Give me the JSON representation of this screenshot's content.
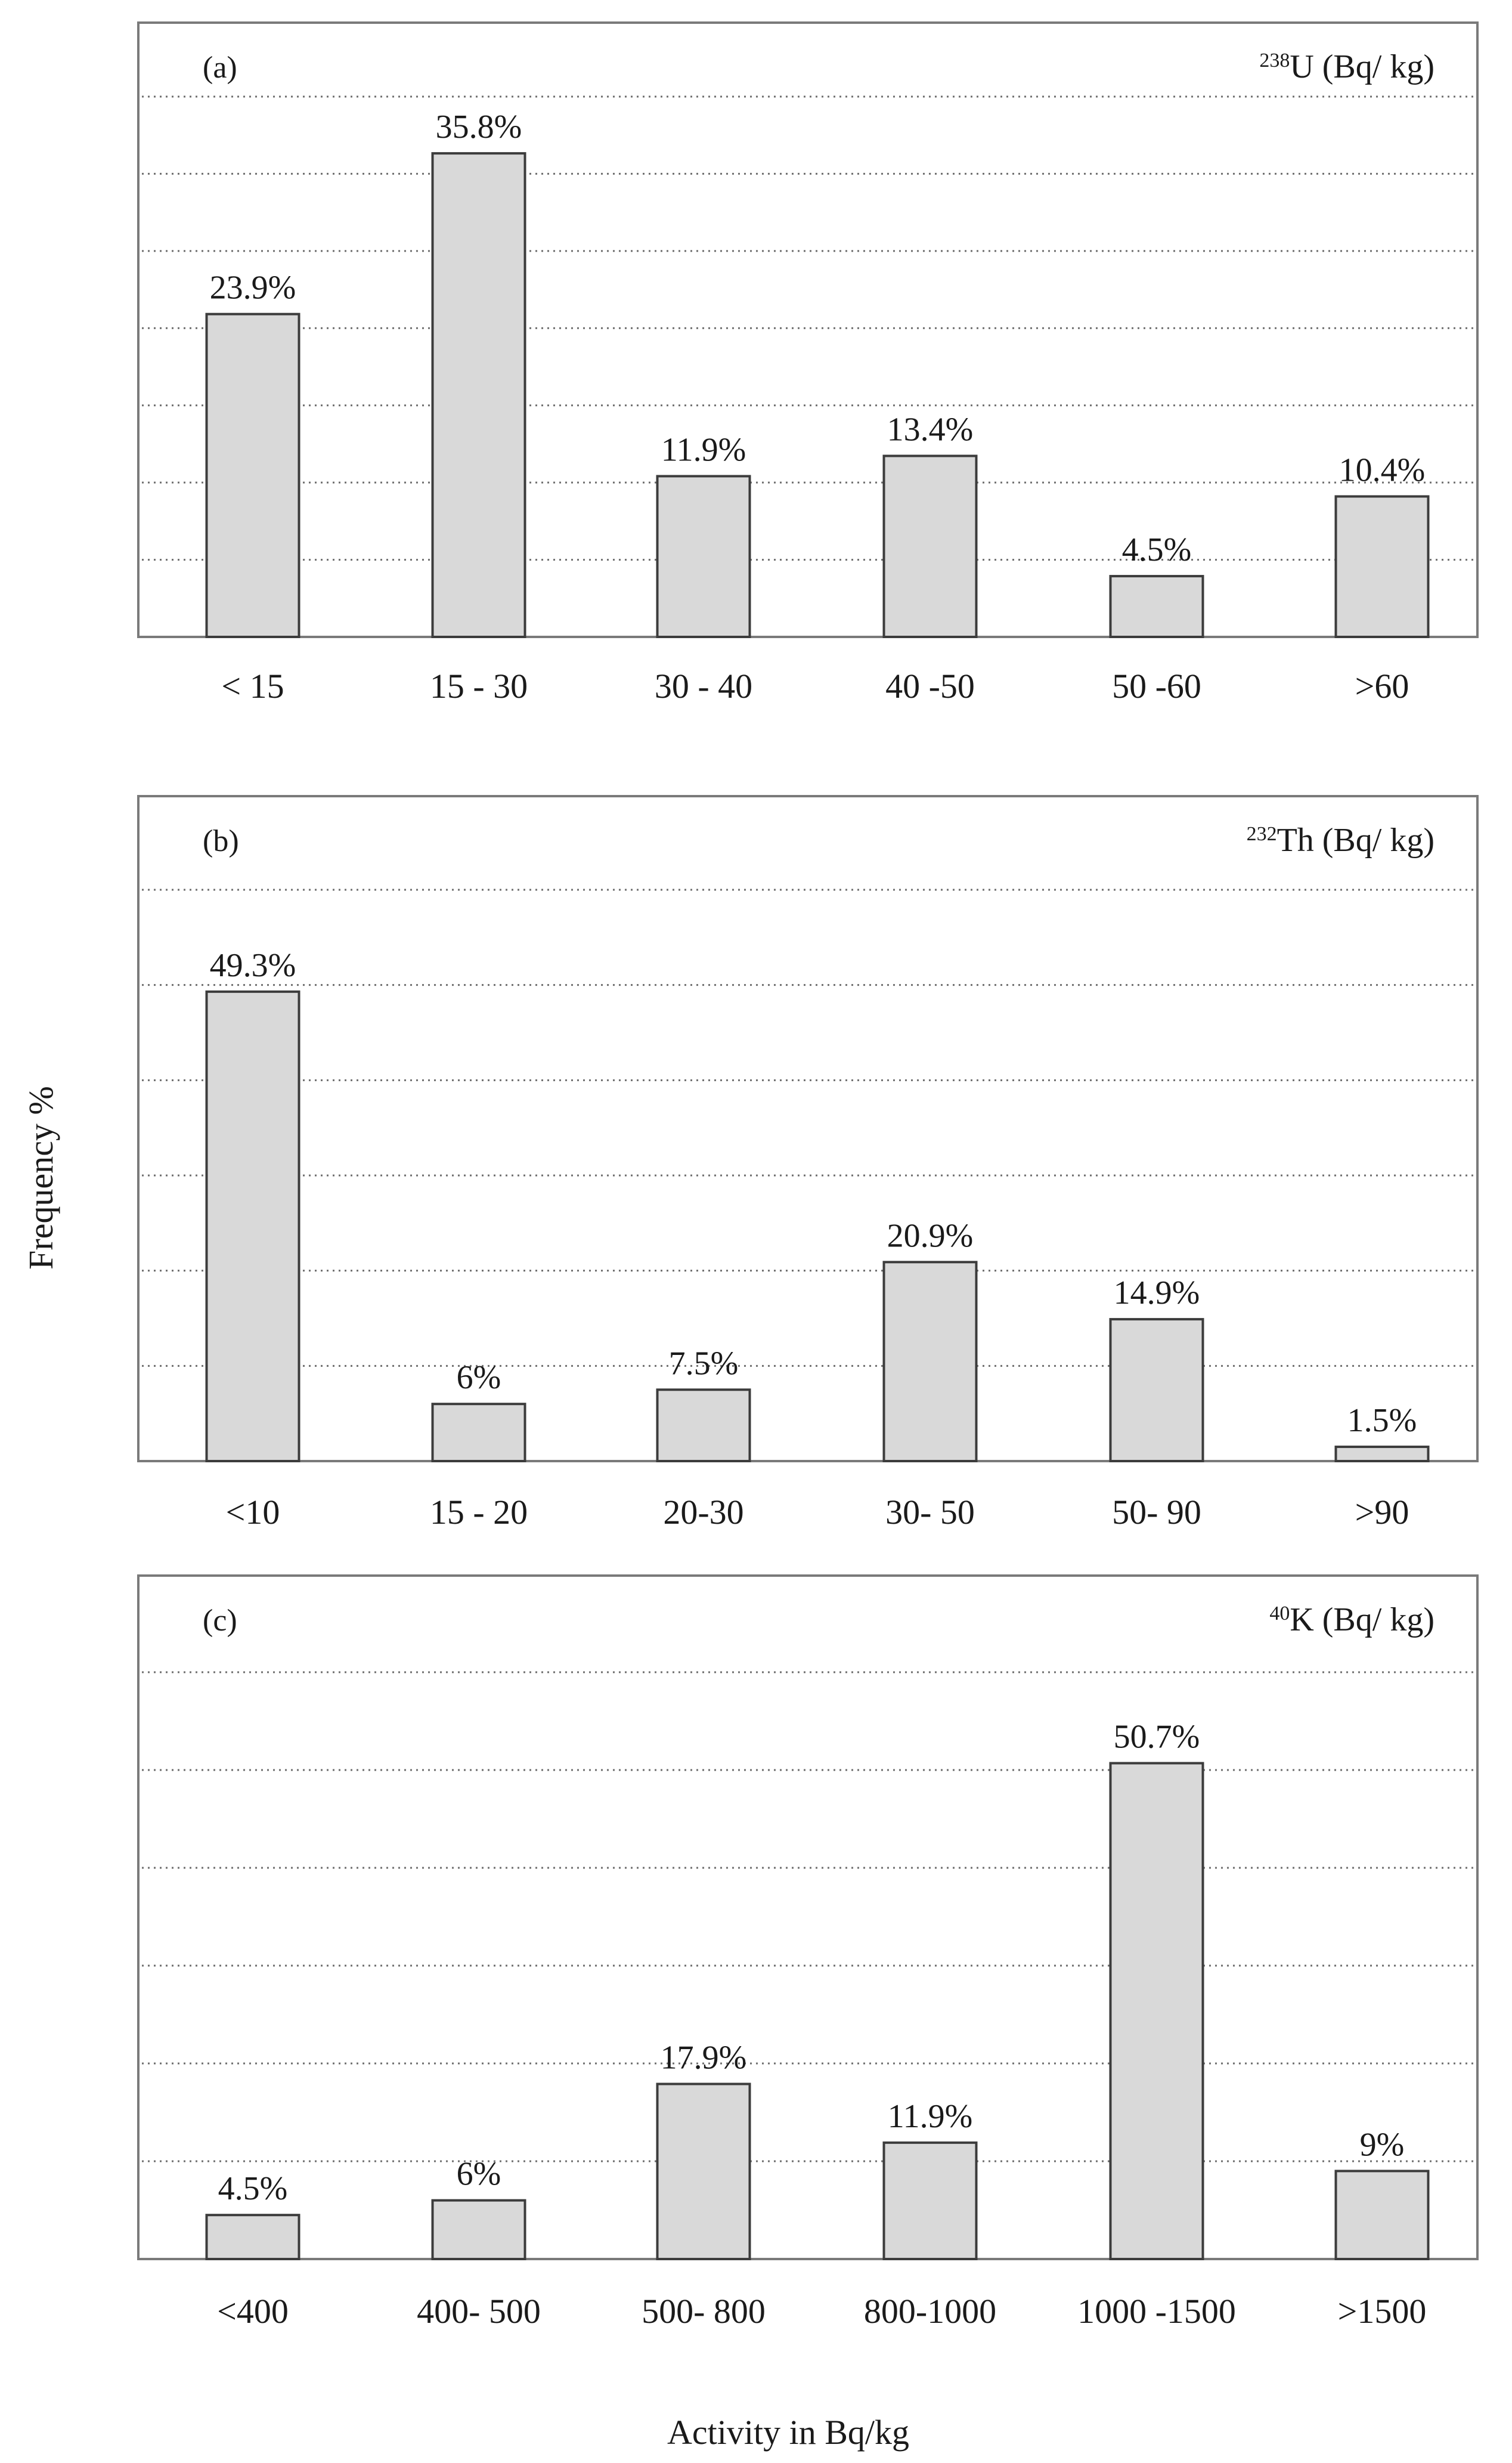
{
  "ylabel": "Frequency %",
  "xlabel": "Activity in Bq/kg",
  "chart_data": [
    {
      "type": "bar",
      "panel_label": "(a)",
      "title_sup": "238",
      "title_main": "U (Bq/ kg)",
      "categories": [
        "< 15",
        "15 - 30",
        "30 - 40",
        "40 -50",
        "50 -60",
        ">60"
      ],
      "values": [
        23.9,
        35.8,
        11.9,
        13.4,
        4.5,
        10.4
      ],
      "labels": [
        "23.9%",
        "35.8%",
        "11.9%",
        "13.4%",
        "4.5%",
        "10.4%"
      ],
      "ylim": [
        0,
        40
      ],
      "gridlines": 7,
      "grid": true,
      "title_position": "top-right",
      "panel_label_position": "top-left"
    },
    {
      "type": "bar",
      "panel_label": "(b)",
      "title_sup": "232",
      "title_main": "Th (Bq/ kg)",
      "categories": [
        "<10",
        "15 - 20",
        "20-30",
        "30- 50",
        "50- 90",
        ">90"
      ],
      "values": [
        49.3,
        6,
        7.5,
        20.9,
        14.9,
        1.5
      ],
      "labels": [
        "49.3%",
        "6%",
        "7.5%",
        "20.9%",
        "14.9%",
        "1.5%"
      ],
      "ylim": [
        0,
        60
      ],
      "gridlines": 6,
      "grid": true,
      "title_position": "top-right",
      "panel_label_position": "top-left"
    },
    {
      "type": "bar",
      "panel_label": "(c)",
      "title_sup": "40",
      "title_main": "K (Bq/ kg)",
      "categories": [
        "<400",
        "400- 500",
        "500- 800",
        "800-1000",
        "1000 -1500",
        ">1500"
      ],
      "values": [
        4.5,
        6,
        17.9,
        11.9,
        50.7,
        9
      ],
      "labels": [
        "4.5%",
        "6%",
        "17.9%",
        "11.9%",
        "50.7%",
        "9%"
      ],
      "ylim": [
        0,
        60
      ],
      "gridlines": 6,
      "grid": true,
      "title_position": "top-right",
      "panel_label_position": "top-left"
    }
  ]
}
